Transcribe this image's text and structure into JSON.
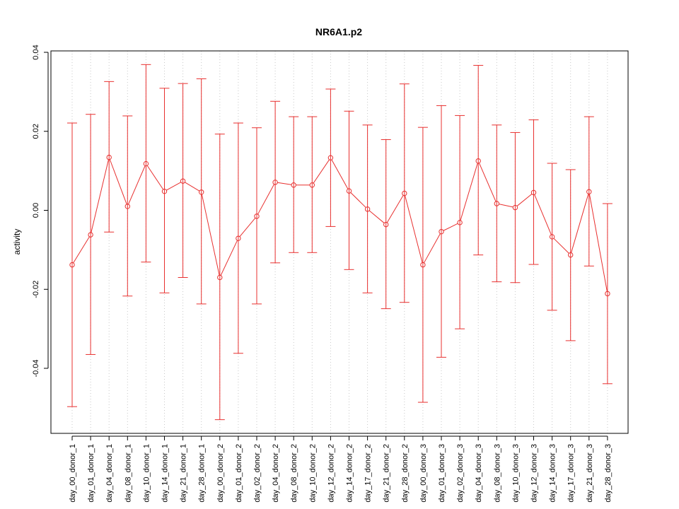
{
  "chart_data": {
    "type": "line",
    "title": "NR6A1.p2",
    "xlabel": "",
    "ylabel": "activity",
    "ylim": [
      -0.056,
      0.04
    ],
    "yticks": [
      -0.04,
      -0.02,
      0.0,
      0.02,
      0.04
    ],
    "ytick_labels": [
      "-0.04",
      "-0.02",
      "0.00",
      "0.02",
      "0.04"
    ],
    "grid": "vertical dotted",
    "color": "#e8302f",
    "categories": [
      "day_00_donor_1",
      "day_01_donor_1",
      "day_04_donor_1",
      "day_08_donor_1",
      "day_10_donor_1",
      "day_14_donor_1",
      "day_21_donor_1",
      "day_28_donor_1",
      "day_00_donor_2",
      "day_01_donor_2",
      "day_02_donor_2",
      "day_04_donor_2",
      "day_08_donor_2",
      "day_10_donor_2",
      "day_12_donor_2",
      "day_14_donor_2",
      "day_17_donor_2",
      "day_21_donor_2",
      "day_28_donor_2",
      "day_00_donor_3",
      "day_01_donor_3",
      "day_02_donor_3",
      "day_04_donor_3",
      "day_08_donor_3",
      "day_10_donor_3",
      "day_12_donor_3",
      "day_14_donor_3",
      "day_17_donor_3",
      "day_21_donor_3",
      "day_28_donor_3"
    ],
    "values": [
      -0.0138,
      -0.0062,
      0.0134,
      0.001,
      0.0118,
      0.0048,
      0.0074,
      0.0046,
      -0.017,
      -0.0071,
      -0.0015,
      0.0071,
      0.0064,
      0.0064,
      0.0133,
      0.0049,
      0.0003,
      -0.0036,
      0.0043,
      -0.0138,
      -0.0054,
      -0.0031,
      0.0125,
      0.0017,
      0.0007,
      0.0045,
      -0.0067,
      -0.0113,
      0.0047,
      -0.0211
    ],
    "upper": [
      0.0221,
      0.0243,
      0.0326,
      0.0239,
      0.0369,
      0.0309,
      0.0321,
      0.0333,
      0.0193,
      0.0221,
      0.0209,
      0.0276,
      0.0237,
      0.0237,
      0.0307,
      0.0251,
      0.0216,
      0.0179,
      0.032,
      0.021,
      0.0265,
      0.024,
      0.0367,
      0.0216,
      0.0197,
      0.0229,
      0.0119,
      0.0103,
      0.0237,
      0.0017
    ],
    "lower": [
      -0.0497,
      -0.0365,
      -0.0055,
      -0.0217,
      -0.0131,
      -0.0209,
      -0.017,
      -0.0237,
      -0.053,
      -0.0362,
      -0.0237,
      -0.0133,
      -0.0107,
      -0.0107,
      -0.0041,
      -0.015,
      -0.0209,
      -0.0249,
      -0.0233,
      -0.0486,
      -0.0372,
      -0.03,
      -0.0113,
      -0.0181,
      -0.0183,
      -0.0137,
      -0.0253,
      -0.033,
      -0.0141,
      -0.0439
    ]
  }
}
